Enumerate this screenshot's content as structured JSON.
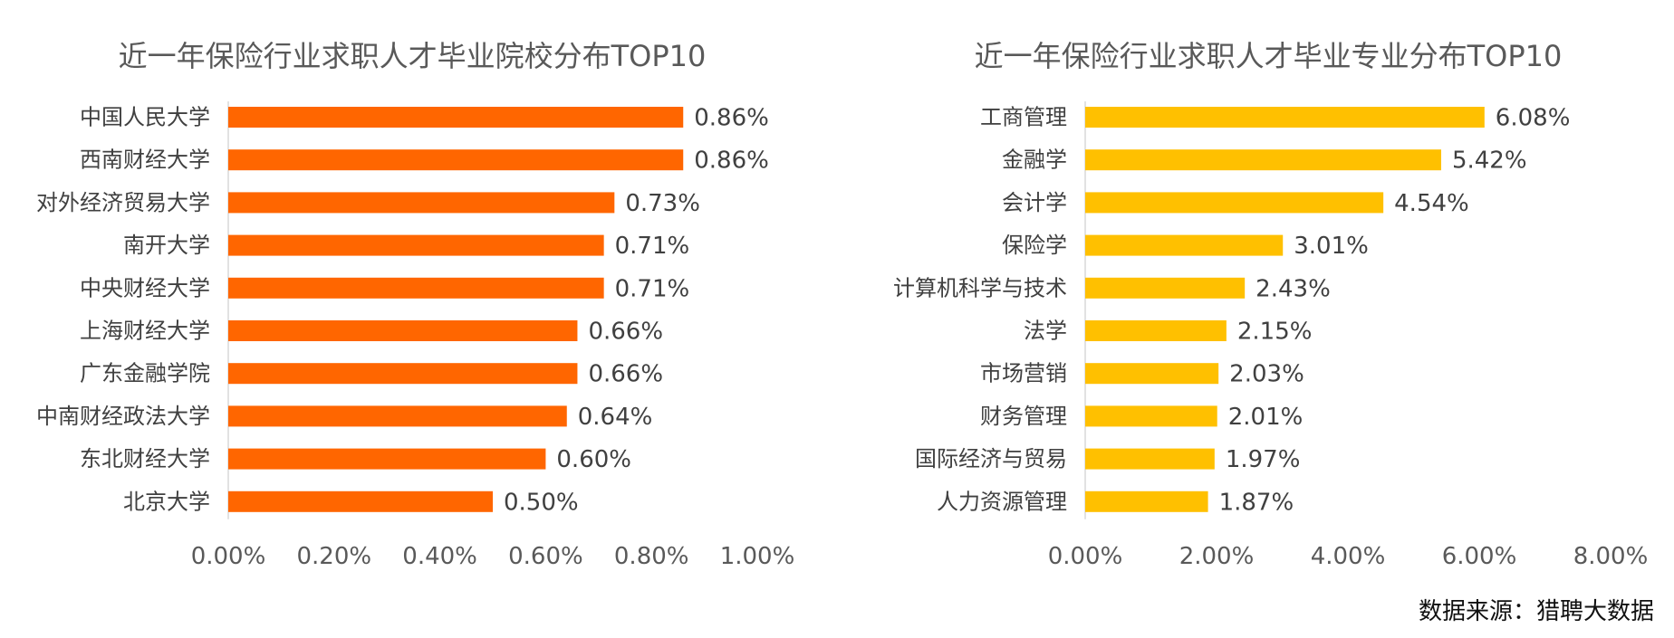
{
  "chart_data": [
    {
      "type": "bar",
      "orientation": "horizontal",
      "title": "近一年保险行业求职人才毕业院校分布TOP10",
      "categories": [
        "中国人民大学",
        "西南财经大学",
        "对外经济贸易大学",
        "南开大学",
        "中央财经大学",
        "上海财经大学",
        "广东金融学院",
        "中南财经政法大学",
        "东北财经大学",
        "北京大学"
      ],
      "values": [
        0.86,
        0.86,
        0.73,
        0.71,
        0.71,
        0.66,
        0.66,
        0.64,
        0.6,
        0.5
      ],
      "value_labels": [
        "0.86%",
        "0.86%",
        "0.73%",
        "0.71%",
        "0.71%",
        "0.66%",
        "0.66%",
        "0.64%",
        "0.60%",
        "0.50%"
      ],
      "xlim": [
        0,
        1.0
      ],
      "ticks": [
        0,
        0.2,
        0.4,
        0.6,
        0.8,
        1.0
      ],
      "tick_labels": [
        "0.00%",
        "0.20%",
        "0.40%",
        "0.60%",
        "0.80%",
        "1.00%"
      ],
      "bar_color": "#FF6600",
      "grid": false
    },
    {
      "type": "bar",
      "orientation": "horizontal",
      "title": "近一年保险行业求职人才毕业专业分布TOP10",
      "categories": [
        "工商管理",
        "金融学",
        "会计学",
        "保险学",
        "计算机科学与技术",
        "法学",
        "市场营销",
        "财务管理",
        "国际经济与贸易",
        "人力资源管理"
      ],
      "values": [
        6.08,
        5.42,
        4.54,
        3.01,
        2.43,
        2.15,
        2.03,
        2.01,
        1.97,
        1.87
      ],
      "value_labels": [
        "6.08%",
        "5.42%",
        "4.54%",
        "3.01%",
        "2.43%",
        "2.15%",
        "2.03%",
        "2.01%",
        "1.97%",
        "1.87%"
      ],
      "xlim": [
        0,
        8.0
      ],
      "ticks": [
        0,
        2,
        4,
        6,
        8
      ],
      "tick_labels": [
        "0.00%",
        "2.00%",
        "4.00%",
        "6.00%",
        "8.00%"
      ],
      "bar_color": "#FFC000",
      "grid": false
    }
  ],
  "source": "数据来源：猎聘大数据"
}
